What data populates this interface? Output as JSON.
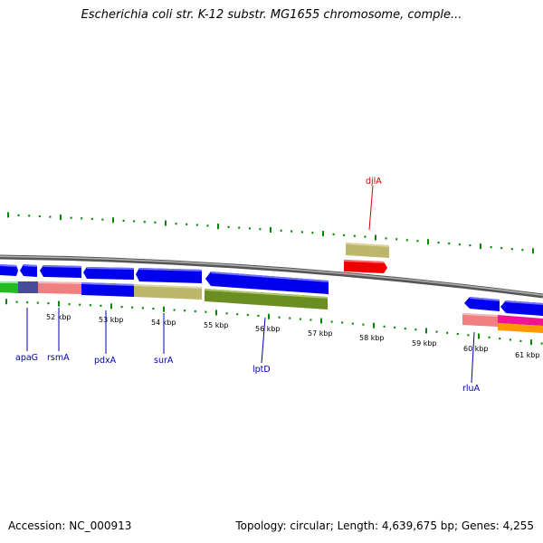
{
  "title": "Escherichia coli str. K-12 substr. MG1655 chromosome, comple...",
  "footer": {
    "accession": "Accession: NC_000913",
    "summary": "Topology: circular; Length: 4,639,675 bp; Genes: 4,255"
  },
  "colors": {
    "backbone": "#8a8a8a",
    "forward_strand_gene": "#0000ee",
    "reverse_strand_gene": "#ee0000",
    "tick": "#008800",
    "gene_label_blue": "#0000aa",
    "gene_label_red": "#cc0000"
  },
  "axis": {
    "unit": "kbp",
    "labels": [
      "52 kbp",
      "53 kbp",
      "54 kbp",
      "55 kbp",
      "56 kbp",
      "57 kbp",
      "58 kbp",
      "59 kbp",
      "60 kbp",
      "61 kbp"
    ]
  },
  "genes": [
    {
      "name": "apaG",
      "strand": "forward"
    },
    {
      "name": "rsmA",
      "strand": "forward"
    },
    {
      "name": "pdxA",
      "strand": "forward"
    },
    {
      "name": "surA",
      "strand": "forward"
    },
    {
      "name": "lptD",
      "strand": "forward"
    },
    {
      "name": "djlA",
      "strand": "reverse"
    },
    {
      "name": "rluA",
      "strand": "forward"
    }
  ]
}
